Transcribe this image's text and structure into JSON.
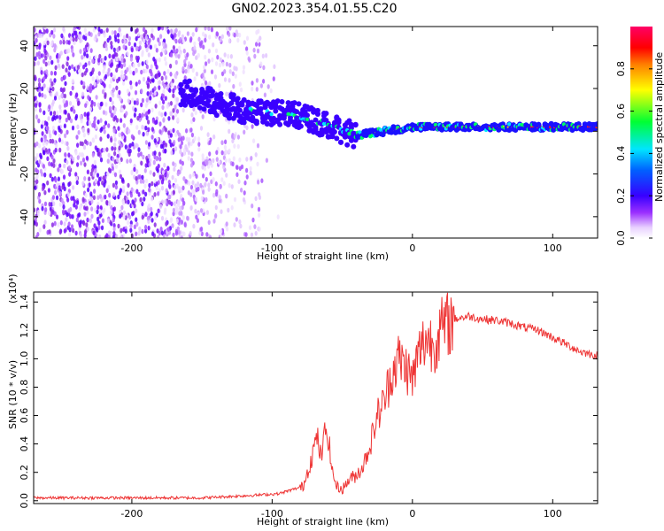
{
  "title": "GN02.2023.354.01.55.C20",
  "chart_data": [
    {
      "type": "heatmap",
      "title": "GN02.2023.354.01.55.C20",
      "xlabel": "Height of straight line (km)",
      "ylabel": "Frequency (Hz)",
      "xlim": [
        -270,
        132
      ],
      "ylim": [
        -50,
        49
      ],
      "xticks": [
        -200,
        -100,
        0,
        100
      ],
      "yticks": [
        -40,
        -20,
        0,
        20,
        40
      ],
      "colorbar": {
        "label": "Normalized spectral amplitude",
        "range": [
          0,
          1
        ],
        "ticks": [
          0.0,
          0.2,
          0.4,
          0.6,
          0.8
        ],
        "colors": [
          "#ffffff",
          "#9b30ff",
          "#3700ff",
          "#0060ff",
          "#00e5ff",
          "#00ff00",
          "#ffff00",
          "#ff7f00",
          "#ff0000",
          "#ff0066"
        ]
      },
      "trend": {
        "x": [
          -160,
          -140,
          -120,
          -100,
          -80,
          -60,
          -40,
          -20,
          0,
          50,
          100,
          132
        ],
        "y": [
          18,
          13,
          10,
          9,
          7,
          3,
          -2,
          0,
          2,
          2,
          2,
          2
        ]
      }
    },
    {
      "type": "line",
      "xlabel": "Height of straight line (km)",
      "ylabel": "SNR (10 * v/v)",
      "y_multiplier": "(x10⁴)",
      "xlim": [
        -270,
        132
      ],
      "ylim": [
        -0.02,
        1.47
      ],
      "xticks": [
        -200,
        -100,
        0,
        100
      ],
      "yticks": [
        0.0,
        0.2,
        0.4,
        0.6,
        0.8,
        1.0,
        1.2,
        1.4
      ],
      "color": "#ee3333",
      "series": [
        {
          "x": [
            -270,
            -200,
            -150,
            -130,
            -110,
            -95,
            -85,
            -78,
            -72,
            -68,
            -65,
            -62,
            -60,
            -57,
            -54,
            -50,
            -45,
            -40,
            -35,
            -30,
            -25,
            -20,
            -15,
            -10,
            -5,
            0,
            5,
            10,
            15,
            20,
            30,
            40,
            50,
            60,
            70,
            80,
            90,
            100,
            110,
            120,
            132
          ],
          "y": [
            0.02,
            0.02,
            0.02,
            0.03,
            0.04,
            0.05,
            0.08,
            0.1,
            0.3,
            0.45,
            0.3,
            0.5,
            0.45,
            0.2,
            0.1,
            0.08,
            0.15,
            0.18,
            0.25,
            0.4,
            0.6,
            0.7,
            0.9,
            1.0,
            0.95,
            0.85,
            1.05,
            1.15,
            1.1,
            1.2,
            1.28,
            1.3,
            1.28,
            1.27,
            1.25,
            1.22,
            1.2,
            1.15,
            1.1,
            1.05,
            1.02
          ]
        }
      ]
    }
  ]
}
